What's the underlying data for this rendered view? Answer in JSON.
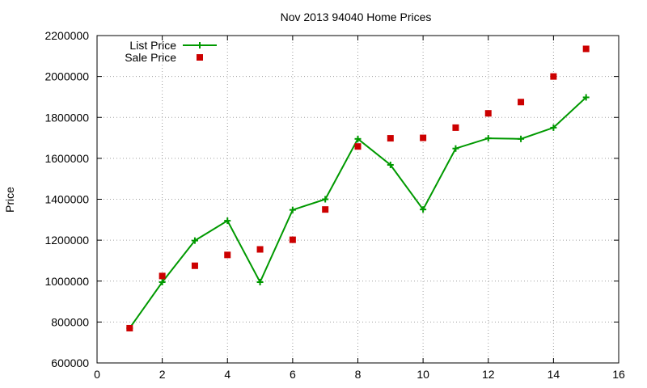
{
  "chart_data": {
    "type": "line",
    "title": "Nov 2013 94040 Home Prices",
    "xlabel": "",
    "ylabel": "Price",
    "xlim": [
      0,
      16
    ],
    "ylim": [
      600000,
      2200000
    ],
    "xticks": [
      0,
      2,
      4,
      6,
      8,
      10,
      12,
      14,
      16
    ],
    "yticks": [
      600000,
      800000,
      1000000,
      1200000,
      1400000,
      1600000,
      1800000,
      2000000,
      2200000
    ],
    "grid": true,
    "legend_position": "top-left",
    "x": [
      1,
      2,
      3,
      4,
      5,
      6,
      7,
      8,
      9,
      10,
      11,
      12,
      13,
      14,
      15
    ],
    "series": [
      {
        "name": "List Price",
        "style": "line-with-plus-markers",
        "color": "#009900",
        "values": [
          770000,
          995000,
          1198000,
          1295000,
          995000,
          1348000,
          1400000,
          1695000,
          1568000,
          1350000,
          1648000,
          1698000,
          1695000,
          1750000,
          1898000
        ]
      },
      {
        "name": "Sale Price",
        "style": "square-markers",
        "color": "#cc0000",
        "values": [
          770000,
          1025000,
          1075000,
          1128000,
          1155000,
          1202000,
          1350000,
          1658000,
          1698000,
          1700000,
          1750000,
          1820000,
          1875000,
          2000000,
          2135000
        ]
      }
    ]
  }
}
